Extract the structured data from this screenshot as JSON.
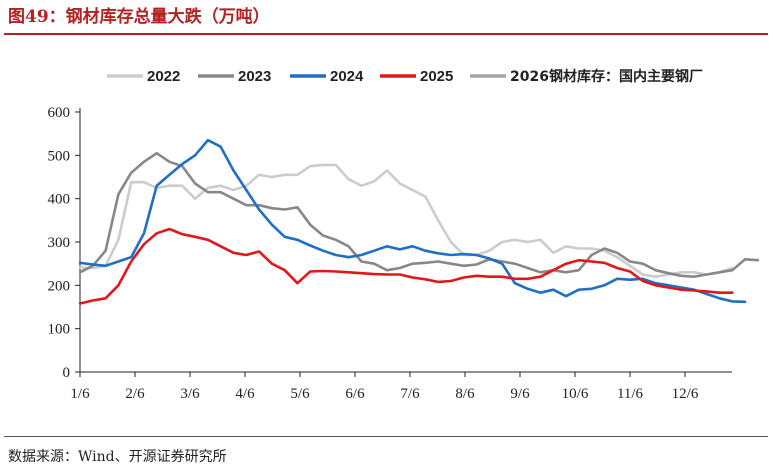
{
  "header": {
    "title": "图49：钢材库存总量大跌（万吨）"
  },
  "footer": {
    "source": "数据来源：Wind、开源证券研究所"
  },
  "chart_data": {
    "type": "line",
    "title": "",
    "xlabel": "",
    "ylabel": "",
    "ylim": [
      0,
      600
    ],
    "y_ticks": [
      0,
      100,
      200,
      300,
      400,
      500,
      600
    ],
    "x_ticks": [
      "1/6",
      "2/6",
      "3/6",
      "4/6",
      "5/6",
      "6/6",
      "7/6",
      "8/6",
      "9/6",
      "10/6",
      "11/6",
      "12/6"
    ],
    "x_unit": "week index starting 1/6 (≈4.3 weeks per month)",
    "grid": false,
    "legend_position": "top",
    "series": [
      {
        "name": "2022",
        "color": "#cccccc",
        "values": [
          241,
          240,
          245,
          305,
          438,
          438,
          425,
          430,
          430,
          400,
          425,
          430,
          420,
          430,
          455,
          450,
          455,
          455,
          475,
          478,
          478,
          445,
          430,
          440,
          465,
          435,
          420,
          405,
          350,
          300,
          270,
          270,
          280,
          300,
          305,
          300,
          305,
          275,
          290,
          285,
          285,
          280,
          265,
          245,
          225,
          220,
          225,
          230,
          230,
          225,
          230,
          240
        ]
      },
      {
        "name": "2023",
        "color": "#888888",
        "values": [
          230,
          245,
          280,
          410,
          460,
          485,
          505,
          485,
          475,
          435,
          415,
          415,
          400,
          385,
          385,
          378,
          375,
          380,
          340,
          315,
          305,
          290,
          255,
          250,
          235,
          240,
          250,
          252,
          255,
          250,
          245,
          248,
          260,
          255,
          250,
          240,
          230,
          235,
          230,
          235,
          270,
          285,
          275,
          255,
          250,
          235,
          228,
          222,
          220,
          225,
          230,
          235,
          260,
          258
        ]
      },
      {
        "name": "2024",
        "color": "#1f6fc5",
        "values": [
          252,
          248,
          245,
          255,
          265,
          320,
          430,
          455,
          480,
          500,
          535,
          520,
          465,
          420,
          375,
          340,
          312,
          305,
          292,
          280,
          270,
          265,
          270,
          280,
          290,
          283,
          290,
          280,
          274,
          270,
          272,
          270,
          262,
          250,
          205,
          192,
          183,
          190,
          175,
          190,
          192,
          200,
          215,
          213,
          215,
          205,
          200,
          195,
          190,
          180,
          170,
          163,
          162
        ]
      },
      {
        "name": "2025",
        "color": "#e0181b",
        "values": [
          158,
          165,
          170,
          200,
          255,
          295,
          320,
          330,
          318,
          312,
          305,
          290,
          275,
          270,
          278,
          250,
          235,
          205,
          232,
          233,
          232,
          230,
          228,
          226,
          225,
          225,
          218,
          214,
          208,
          210,
          218,
          222,
          220,
          220,
          215,
          215,
          220,
          235,
          250,
          258,
          255,
          252,
          240,
          232,
          210,
          200,
          195,
          190,
          188,
          186,
          183,
          183
        ]
      },
      {
        "name": "2026钢材库存：国内主要钢厂",
        "color": "#a6a6a6",
        "values": [
          null,
          null,
          null,
          null,
          null,
          null,
          null,
          null,
          null,
          null,
          null,
          null,
          null,
          null,
          null,
          null,
          null,
          null,
          null,
          null,
          null,
          null,
          null,
          null,
          null,
          null,
          null,
          null,
          null,
          null,
          null,
          null,
          null,
          null,
          null,
          null,
          null,
          null,
          null,
          null,
          null,
          null,
          null,
          null,
          null,
          null,
          null,
          null,
          null,
          null,
          null,
          null
        ]
      }
    ]
  }
}
